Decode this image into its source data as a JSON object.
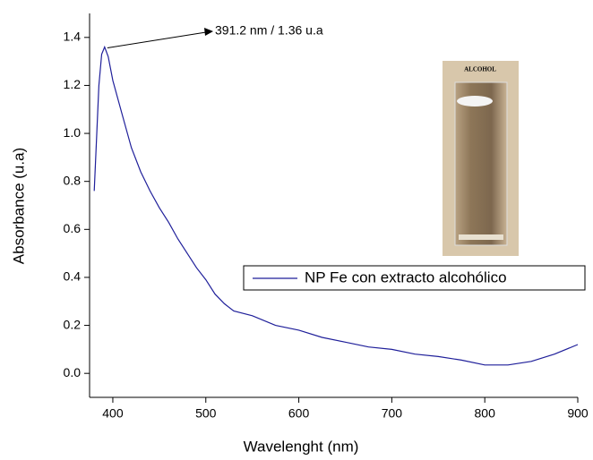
{
  "chart_data": {
    "type": "line",
    "x_label": "Wavelenght (nm)",
    "y_label": "Absorbance (u.a)",
    "annotation": {
      "text": "391.2 nm / 1.36 u.a",
      "x": 391.2,
      "y": 1.36
    },
    "photo_label": "ALCOHOL",
    "x": [
      380,
      385,
      388,
      391.2,
      395,
      400,
      410,
      420,
      430,
      440,
      450,
      460,
      470,
      480,
      490,
      500,
      510,
      520,
      530,
      550,
      575,
      600,
      625,
      650,
      675,
      700,
      725,
      750,
      775,
      800,
      825,
      850,
      875,
      900
    ],
    "series": [
      {
        "name": "NP Fe con extracto alcohólico",
        "color": "#1f1f9a",
        "values": [
          0.76,
          1.2,
          1.33,
          1.36,
          1.32,
          1.22,
          1.08,
          0.94,
          0.84,
          0.76,
          0.69,
          0.63,
          0.56,
          0.5,
          0.44,
          0.39,
          0.33,
          0.29,
          0.26,
          0.24,
          0.2,
          0.18,
          0.15,
          0.13,
          0.11,
          0.1,
          0.08,
          0.07,
          0.055,
          0.035,
          0.035,
          0.05,
          0.08,
          0.12
        ]
      }
    ],
    "xlim": [
      375,
      900
    ],
    "xticks": [
      400,
      500,
      600,
      700,
      800,
      900
    ],
    "ylim": [
      -0.1,
      1.5
    ],
    "yticks": [
      {
        "value": 0,
        "label": "0.0"
      },
      0.2,
      0.4,
      0.6,
      0.8,
      {
        "value": 1,
        "label": "1.0"
      },
      1.2,
      1.4
    ],
    "grid": false,
    "legend": "center-right"
  }
}
